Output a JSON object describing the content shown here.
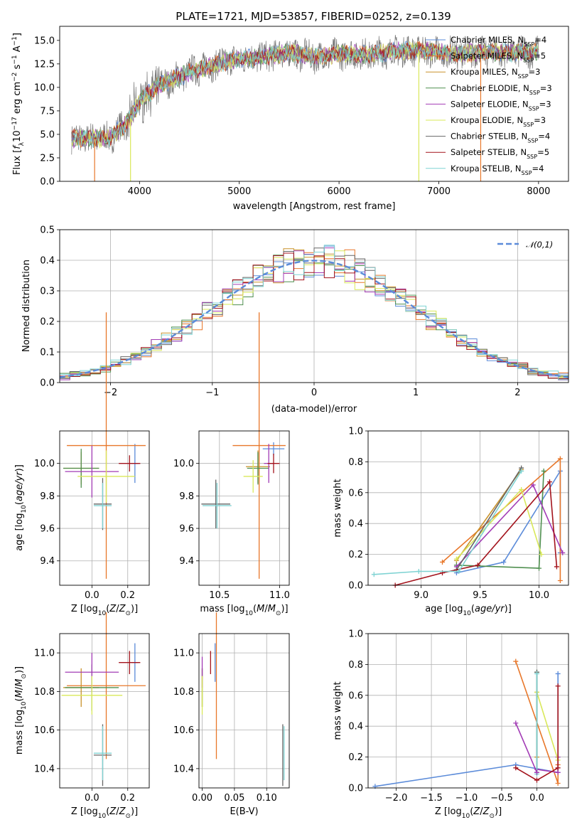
{
  "figure": {
    "title": "PLATE=1721, MJD=53857, FIBERID=0252, z=0.139"
  },
  "model_colors": [
    "#5b8bd9",
    "#e8772a",
    "#c9922a",
    "#4f8f4f",
    "#a23bb5",
    "#d9e85a",
    "#666666",
    "#a3131c",
    "#7fd3d3"
  ],
  "chart_data": [
    {
      "id": "spectrum",
      "type": "line",
      "xlabel": "wavelength [Angstrom, rest frame]",
      "ylabel": "Flux [f_λ 10^-17 erg cm^-2 s^-1 A^-1]",
      "xlim": [
        3200,
        8300
      ],
      "ylim": [
        0,
        16.5
      ],
      "xticks": [
        "4000",
        "5000",
        "6000",
        "7000",
        "8000"
      ],
      "yticks": [
        "0.0",
        "2.5",
        "5.0",
        "7.5",
        "10.0",
        "12.5",
        "15.0"
      ],
      "grid": false,
      "legend_position": "upper-right",
      "series": [
        {
          "name": "Chabrier MILES, N_SSP=4"
        },
        {
          "name": "Salpeter MILES, N_SSP=5"
        },
        {
          "name": "Kroupa MILES, N_SSP=3"
        },
        {
          "name": "Chabrier ELODIE, N_SSP=3"
        },
        {
          "name": "Salpeter ELODIE, N_SSP=3"
        },
        {
          "name": "Kroupa ELODIE, N_SSP=3"
        },
        {
          "name": "Chabrier STELIB, N_SSP=4"
        },
        {
          "name": "Salpeter STELIB, N_SSP=5"
        },
        {
          "name": "Kroupa STELIB, N_SSP=4"
        }
      ],
      "continuum": {
        "x": [
          3320,
          3500,
          3700,
          3900,
          4000,
          4200,
          4500,
          4800,
          5000,
          5200,
          5500,
          5800,
          6000,
          6300,
          6500,
          6800,
          7000,
          7200,
          7500,
          7800,
          8000
        ],
        "y": [
          4.6,
          4.5,
          4.6,
          6.5,
          8.6,
          10.2,
          11.6,
          12.6,
          13.0,
          13.2,
          13.7,
          13.2,
          13.6,
          13.5,
          13.8,
          14.0,
          13.7,
          13.6,
          13.8,
          13.7,
          13.8
        ]
      },
      "spikes": [
        {
          "x": 3550,
          "color_index": 1
        },
        {
          "x": 3910,
          "color_index": 5
        },
        {
          "x": 6800,
          "color_index": 5
        },
        {
          "x": 7420,
          "color_index": 1
        }
      ]
    },
    {
      "id": "residuals",
      "type": "histogram",
      "xlabel": "(data-model)/error",
      "ylabel": "Normed distribution",
      "xlim": [
        -2.5,
        2.5
      ],
      "ylim": [
        0,
        0.5
      ],
      "xticks": [
        "−2",
        "−1",
        "0",
        "1",
        "2"
      ],
      "yticks": [
        "0.0",
        "0.1",
        "0.2",
        "0.3",
        "0.4",
        "0.5"
      ],
      "grid": true,
      "legend_position": "upper-right",
      "reference": {
        "name": "𝒩(0,1)",
        "mean": 0,
        "sigma": 1
      }
    },
    {
      "id": "age_vs_Z",
      "type": "errorbar",
      "xlabel": "Z [log10(Z/Z⊙)]",
      "ylabel": "age [log10(age/yr)]",
      "xlim": [
        -0.18,
        0.32
      ],
      "ylim": [
        9.25,
        10.2
      ],
      "xticks": [
        "0.0",
        "0.2"
      ],
      "yticks": [
        "9.4",
        "9.6",
        "9.8",
        "10.0"
      ],
      "grid": true,
      "points": [
        {
          "x": 0.24,
          "y": 10.0,
          "xerr": 0.02,
          "yerr": 0.12,
          "model": 0
        },
        {
          "x": 0.08,
          "y": 10.11,
          "xerr": 0.22,
          "yerr": 0.82,
          "model": 1
        },
        {
          "x": -0.06,
          "y": 9.97,
          "xerr": 0.1,
          "yerr": 0.1,
          "model": 2
        },
        {
          "x": -0.06,
          "y": 9.97,
          "xerr": 0.1,
          "yerr": 0.12,
          "model": 3
        },
        {
          "x": 0.0,
          "y": 9.95,
          "xerr": 0.15,
          "yerr": 0.16,
          "model": 4
        },
        {
          "x": 0.08,
          "y": 9.92,
          "xerr": 0.16,
          "yerr": 0.16,
          "model": 5
        },
        {
          "x": 0.06,
          "y": 9.75,
          "xerr": 0.05,
          "yerr": 0.16,
          "model": 6
        },
        {
          "x": 0.21,
          "y": 10.0,
          "xerr": 0.06,
          "yerr": 0.05,
          "model": 7
        },
        {
          "x": 0.06,
          "y": 9.74,
          "xerr": 0.05,
          "yerr": 0.14,
          "model": 8
        }
      ]
    },
    {
      "id": "age_vs_mass",
      "type": "errorbar",
      "xlabel": "mass [log10(M/M⊙)]",
      "ylabel": "",
      "xlim": [
        10.33,
        11.08
      ],
      "ylim": [
        9.25,
        10.2
      ],
      "xticks": [
        "10.5",
        "11.0"
      ],
      "yticks": [
        "9.4",
        "9.6",
        "9.8",
        "10.0"
      ],
      "grid": true,
      "points": [
        {
          "x": 10.95,
          "y": 10.09,
          "xerr": 0.09,
          "yerr": 0.04,
          "model": 0
        },
        {
          "x": 10.83,
          "y": 10.11,
          "xerr": 0.22,
          "yerr": 0.82,
          "model": 1
        },
        {
          "x": 10.82,
          "y": 9.98,
          "xerr": 0.1,
          "yerr": 0.1,
          "model": 2
        },
        {
          "x": 10.82,
          "y": 9.97,
          "xerr": 0.09,
          "yerr": 0.1,
          "model": 3
        },
        {
          "x": 10.91,
          "y": 10.0,
          "xerr": 0.04,
          "yerr": 0.12,
          "model": 4
        },
        {
          "x": 10.78,
          "y": 9.92,
          "xerr": 0.08,
          "yerr": 0.1,
          "model": 5
        },
        {
          "x": 10.47,
          "y": 9.75,
          "xerr": 0.12,
          "yerr": 0.15,
          "model": 6
        },
        {
          "x": 10.95,
          "y": 10.0,
          "xerr": 0.05,
          "yerr": 0.06,
          "model": 7
        },
        {
          "x": 10.48,
          "y": 9.74,
          "xerr": 0.12,
          "yerr": 0.14,
          "model": 8
        }
      ]
    },
    {
      "id": "weight_vs_age",
      "type": "line",
      "xlabel": "age [log10(age/yr)]",
      "ylabel": "mass weight",
      "xlim": [
        8.55,
        10.25
      ],
      "ylim": [
        0,
        1
      ],
      "xticks": [
        "9.0",
        "9.5",
        "10.0"
      ],
      "yticks": [
        "0.0",
        "0.2",
        "0.4",
        "0.6",
        "0.8",
        "1.0"
      ],
      "grid": true,
      "series": [
        {
          "model": 0,
          "x": [
            9.3,
            9.7,
            10.18,
            10.18
          ],
          "y": [
            0.08,
            0.15,
            0.74,
            0.21
          ]
        },
        {
          "model": 1,
          "x": [
            9.18,
            10.18,
            10.18
          ],
          "y": [
            0.15,
            0.82,
            0.03
          ]
        },
        {
          "model": 2,
          "x": [
            9.3,
            9.85
          ],
          "y": [
            0.16,
            0.75
          ]
        },
        {
          "model": 3,
          "x": [
            9.3,
            10.0,
            10.04
          ],
          "y": [
            0.13,
            0.11,
            0.74
          ]
        },
        {
          "model": 4,
          "x": [
            9.3,
            9.95,
            10.2
          ],
          "y": [
            0.12,
            0.65,
            0.21
          ]
        },
        {
          "model": 5,
          "x": [
            9.3,
            9.85,
            10.02
          ],
          "y": [
            0.17,
            0.62,
            0.2
          ]
        },
        {
          "model": 6,
          "x": [
            9.3,
            9.85
          ],
          "y": [
            0.1,
            0.76
          ]
        },
        {
          "model": 7,
          "x": [
            8.78,
            9.18,
            9.48,
            10.09,
            10.15
          ],
          "y": [
            0.0,
            0.08,
            0.13,
            0.67,
            0.12
          ]
        },
        {
          "model": 8,
          "x": [
            8.6,
            8.98,
            9.32,
            9.85
          ],
          "y": [
            0.07,
            0.09,
            0.09,
            0.74
          ]
        }
      ]
    },
    {
      "id": "mass_vs_Z",
      "type": "errorbar",
      "xlabel": "Z [log10(Z/Z⊙)]",
      "ylabel": "mass [log10(M/M⊙)]",
      "xlim": [
        -0.18,
        0.32
      ],
      "ylim": [
        10.3,
        11.1
      ],
      "xticks": [
        "0.0",
        "0.2"
      ],
      "yticks": [
        "10.4",
        "10.6",
        "10.8",
        "11.0"
      ],
      "grid": true,
      "points": [
        {
          "x": 0.24,
          "y": 10.95,
          "xerr": 0.02,
          "yerr": 0.1,
          "model": 0
        },
        {
          "x": 0.08,
          "y": 10.83,
          "xerr": 0.22,
          "yerr": 0.38,
          "model": 1
        },
        {
          "x": -0.06,
          "y": 10.82,
          "xerr": 0.1,
          "yerr": 0.1,
          "model": 2
        },
        {
          "x": 0.0,
          "y": 10.82,
          "xerr": 0.15,
          "yerr": 0.12,
          "model": 3
        },
        {
          "x": 0.0,
          "y": 10.9,
          "xerr": 0.15,
          "yerr": 0.1,
          "model": 4
        },
        {
          "x": 0.0,
          "y": 10.78,
          "xerr": 0.17,
          "yerr": 0.1,
          "model": 5
        },
        {
          "x": 0.06,
          "y": 10.47,
          "xerr": 0.05,
          "yerr": 0.16,
          "model": 6
        },
        {
          "x": 0.21,
          "y": 10.95,
          "xerr": 0.06,
          "yerr": 0.06,
          "model": 7
        },
        {
          "x": 0.06,
          "y": 10.48,
          "xerr": 0.05,
          "yerr": 0.14,
          "model": 8
        }
      ]
    },
    {
      "id": "mass_vs_ebv",
      "type": "errorbar",
      "xlabel": "E(B-V)",
      "ylabel": "",
      "xlim": [
        -0.005,
        0.135
      ],
      "ylim": [
        10.3,
        11.1
      ],
      "xticks": [
        "0.00",
        "0.05",
        "0.10"
      ],
      "yticks": [
        "10.4",
        "10.6",
        "10.8",
        "11.0"
      ],
      "grid": true,
      "points": [
        {
          "x": 0.02,
          "y": 10.95,
          "xerr": 0,
          "yerr": 0.1,
          "model": 0
        },
        {
          "x": 0.022,
          "y": 10.83,
          "xerr": 0,
          "yerr": 0.38,
          "model": 1
        },
        {
          "x": 0.0,
          "y": 10.82,
          "xerr": 0,
          "yerr": 0.1,
          "model": 2
        },
        {
          "x": 0.0,
          "y": 10.82,
          "xerr": 0,
          "yerr": 0.1,
          "model": 3
        },
        {
          "x": 0.0,
          "y": 10.9,
          "xerr": 0,
          "yerr": 0.08,
          "model": 4
        },
        {
          "x": 0.0,
          "y": 10.78,
          "xerr": 0,
          "yerr": 0.1,
          "model": 5
        },
        {
          "x": 0.125,
          "y": 10.47,
          "xerr": 0,
          "yerr": 0.16,
          "model": 6
        },
        {
          "x": 0.013,
          "y": 10.95,
          "xerr": 0,
          "yerr": 0.06,
          "model": 7
        },
        {
          "x": 0.127,
          "y": 10.48,
          "xerr": 0,
          "yerr": 0.14,
          "model": 8
        }
      ]
    },
    {
      "id": "weight_vs_Z",
      "type": "line",
      "xlabel": "Z [log10(Z/Z⊙)]",
      "ylabel": "mass weight",
      "xlim": [
        -2.4,
        0.45
      ],
      "ylim": [
        0,
        1
      ],
      "xticks": [
        "−2.0",
        "−1.5",
        "−1.0",
        "−0.5",
        "0.0"
      ],
      "yticks": [
        "0.0",
        "0.2",
        "0.4",
        "0.6",
        "0.8",
        "1.0"
      ],
      "grid": true,
      "series": [
        {
          "model": 0,
          "x": [
            -2.3,
            -0.3,
            0.3,
            0.3
          ],
          "y": [
            0.01,
            0.15,
            0.1,
            0.74
          ]
        },
        {
          "model": 1,
          "x": [
            -0.3,
            0.3,
            0.3
          ],
          "y": [
            0.82,
            0.03,
            0.15
          ]
        },
        {
          "model": 2,
          "x": [
            0.0,
            0.0
          ],
          "y": [
            0.2,
            0.62
          ]
        },
        {
          "model": 3,
          "x": [
            0.0,
            0.0
          ],
          "y": [
            0.75,
            0.1
          ]
        },
        {
          "model": 4,
          "x": [
            0.0,
            0.3,
            0.3
          ],
          "y": [
            0.12,
            0.1,
            0.2
          ]
        },
        {
          "model": 5,
          "x": [
            0.0,
            0.3
          ],
          "y": [
            0.62,
            0.18
          ]
        },
        {
          "model": 6,
          "x": [
            0.0,
            0.0
          ],
          "y": [
            0.1,
            0.75
          ]
        },
        {
          "model": 7,
          "x": [
            -0.3,
            0.0,
            0.3,
            0.3
          ],
          "y": [
            0.13,
            0.05,
            0.13,
            0.66
          ]
        },
        {
          "model": 8,
          "x": [
            0.0,
            0.0
          ],
          "y": [
            0.74,
            0.09
          ]
        },
        {
          "model": 4,
          "x": [
            -0.3,
            0.0
          ],
          "y": [
            0.42,
            0.1
          ]
        }
      ]
    }
  ]
}
